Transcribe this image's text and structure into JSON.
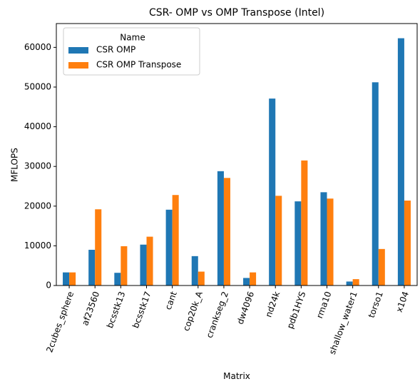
{
  "chart_data": {
    "type": "bar",
    "title": "CSR- OMP vs OMP Transpose (Intel)",
    "xlabel": "Matrix",
    "ylabel": "MFLOPS",
    "ylim": [
      0,
      66000
    ],
    "yticks": [
      0,
      10000,
      20000,
      30000,
      40000,
      50000,
      60000
    ],
    "grid": false,
    "legend": {
      "title": "Name",
      "placement": "top-left"
    },
    "categories": [
      "2cubes_sphere",
      "af23560",
      "bcsstk13",
      "bcsstk17",
      "cant",
      "cop20k_A",
      "crankseg_2",
      "dw4096",
      "nd24k",
      "pdb1HYS",
      "rma10",
      "shallow_water1",
      "torso1",
      "x104"
    ],
    "series": [
      {
        "name": "CSR OMP",
        "color": "#1f77b4",
        "values": [
          3300,
          9000,
          3200,
          10300,
          19100,
          7400,
          28800,
          1900,
          47100,
          21200,
          23500,
          1000,
          51200,
          62300
        ]
      },
      {
        "name": "CSR OMP Transpose",
        "color": "#ff7f0e",
        "values": [
          3300,
          19200,
          9900,
          12300,
          22800,
          3500,
          27100,
          3300,
          22600,
          31500,
          21900,
          1600,
          9200,
          21400
        ]
      }
    ]
  }
}
